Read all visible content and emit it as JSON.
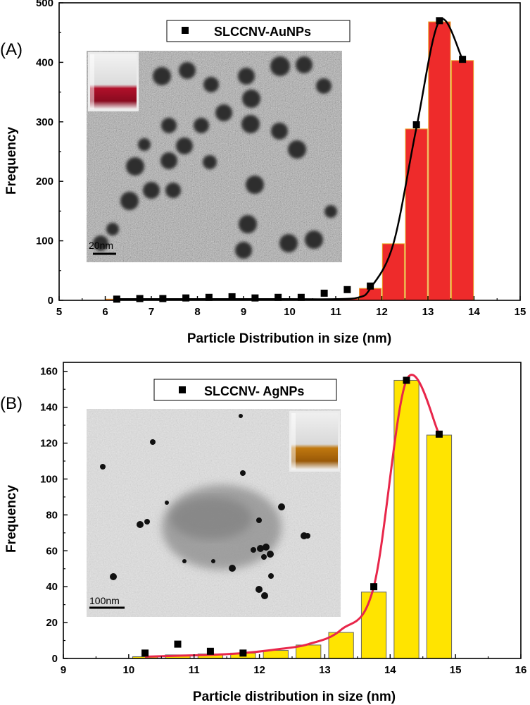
{
  "chart_data": [
    {
      "type": "bar",
      "panel_label": "(A)",
      "legend_entry": "SLCCNV-AuNPs",
      "xlabel": "Particle Distribution in size (nm)",
      "ylabel": "Frequency",
      "xlim": [
        5,
        15
      ],
      "ylim": [
        0,
        500
      ],
      "x_ticks": [
        "5",
        "6",
        "7",
        "8",
        "9",
        "10",
        "11",
        "12",
        "13",
        "14",
        "15"
      ],
      "y_ticks": [
        "0",
        "100",
        "200",
        "300",
        "400",
        "500"
      ],
      "bar_color": "#ee2b2b",
      "bar_edge_color": "#e8a020",
      "line_color": "#000000",
      "marker_color": "#000000",
      "bar_width": 0.5,
      "bars": {
        "x": [
          6.25,
          6.75,
          7.25,
          7.75,
          8.25,
          8.75,
          9.25,
          9.75,
          10.25,
          10.75,
          11.25,
          11.75,
          12.25,
          12.75,
          13.25,
          13.75
        ],
        "y": [
          2,
          2,
          2,
          2,
          2,
          2,
          2,
          2,
          2,
          2,
          3,
          20,
          95,
          288,
          468,
          403
        ]
      },
      "points": {
        "x": [
          6.25,
          6.75,
          7.25,
          7.75,
          8.25,
          8.75,
          9.25,
          9.75,
          10.25,
          10.75,
          11.25,
          11.75,
          12.75,
          13.25,
          13.75
        ],
        "y": [
          2,
          3,
          3,
          4,
          5,
          6,
          4,
          5,
          5,
          12,
          18,
          24,
          295,
          470,
          405
        ]
      },
      "curve": {
        "x": [
          6.25,
          7,
          8,
          9,
          10,
          11,
          11.5,
          11.75,
          12.25,
          12.75,
          13.25,
          13.75
        ],
        "y": [
          2,
          2,
          2,
          2,
          2,
          2,
          5,
          20,
          95,
          290,
          470,
          405
        ]
      },
      "inset_scale_bar": "20nm",
      "grid": false
    },
    {
      "type": "bar",
      "panel_label": "(B)",
      "legend_entry": "SLCCNV- AgNPs",
      "xlabel": "Particle distribution in size  (nm)",
      "ylabel": "Frequency",
      "xlim": [
        9,
        16
      ],
      "ylim": [
        0,
        165
      ],
      "x_ticks": [
        "9",
        "10",
        "11",
        "12",
        "13",
        "14",
        "15",
        "16"
      ],
      "y_ticks": [
        "0",
        "20",
        "40",
        "60",
        "80",
        "100",
        "120",
        "140",
        "160"
      ],
      "bar_color": "#ffe400",
      "bar_edge_color": "#666666",
      "line_color": "#e8264a",
      "marker_color": "#000000",
      "bar_width": 0.4,
      "bars": {
        "x": [
          10.25,
          10.75,
          11.25,
          11.75,
          12.25,
          12.75,
          13.25,
          13.75,
          14.25,
          14.75
        ],
        "y": [
          1,
          2,
          2.5,
          3,
          4.5,
          7.5,
          14.5,
          37,
          155,
          124.5
        ]
      },
      "points": {
        "x": [
          10.25,
          10.75,
          11.25,
          11.75,
          13.75,
          14.25,
          14.75
        ],
        "y": [
          3,
          8,
          4,
          3,
          40,
          155,
          125
        ]
      },
      "curve": {
        "x": [
          10.25,
          10.75,
          11.25,
          11.75,
          12.25,
          12.75,
          13.25,
          13.75,
          14.25,
          14.75
        ],
        "y": [
          1,
          1.5,
          2,
          3,
          5,
          8,
          16,
          40,
          155,
          125
        ]
      },
      "inset_scale_bar": "100nm",
      "grid": false
    }
  ]
}
